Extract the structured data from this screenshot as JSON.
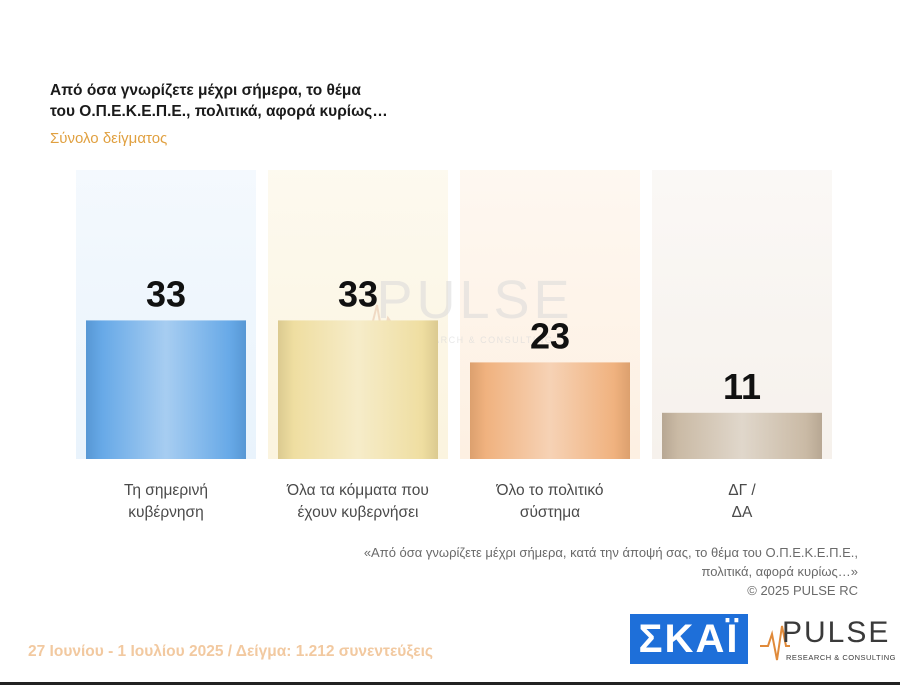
{
  "title": {
    "line1": "Από όσα γνωρίζετε μέχρι σήμερα, το θέμα",
    "line2": "του  Ο.Π.Ε.Κ.Ε.Π.Ε.,  πολιτικά, αφορά κυρίως…"
  },
  "subtitle": "Σύνολο δείγματος",
  "chart_data": {
    "type": "bar",
    "categories": [
      [
        "Τη σημερινή",
        "κυβέρνηση"
      ],
      [
        "Όλα τα κόμματα που",
        "έχουν κυβερνήσει"
      ],
      [
        "Όλο το πολιτικό",
        "σύστημα"
      ],
      [
        "ΔΓ /",
        "ΔΑ"
      ]
    ],
    "values": [
      33,
      33,
      23,
      11
    ],
    "value_labels": [
      "33",
      "33",
      "23",
      "11"
    ],
    "ylim": [
      0,
      100
    ],
    "bar_colors": [
      "#5fa4e6",
      "#eedc9c",
      "#efae78",
      "#c7b6a0"
    ],
    "background_colors": [
      "#e9f3fc",
      "#fbf4df",
      "#fdf0e2",
      "#f6f1ec"
    ]
  },
  "watermark": {
    "name": "PULSE",
    "tagline": "RESEARCH & CONSULTING"
  },
  "note": {
    "line1": "«Από όσα γνωρίζετε μέχρι σήμερα, κατά την άποψή σας, το θέμα του Ο.Π.Ε.Κ.Ε.Π.Ε.,",
    "line2": "πολιτικά, αφορά κυρίως…»",
    "line3": "©  2025  PULSE RC"
  },
  "footer": "27 Ιουνίου - 1 Ιουλίου 2025  /  Δείγμα:  1.212 συνεντεύξεις",
  "logos": {
    "skai": "ΣΚΑΪ",
    "pulse": "PULSE",
    "pulse_tag": "RESEARCH & CONSULTING"
  }
}
